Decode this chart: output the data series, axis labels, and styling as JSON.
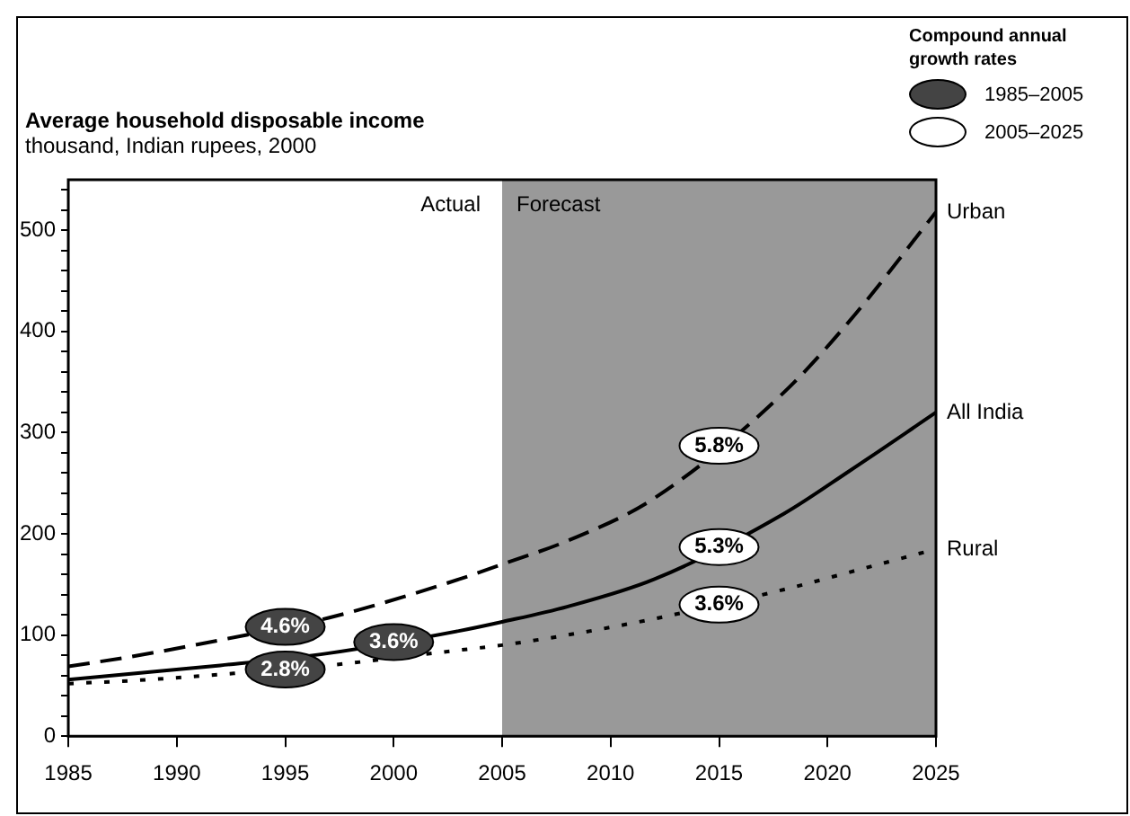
{
  "chart_data": {
    "type": "line",
    "title": "Average household disposable income",
    "subtitle": "thousand, Indian rupees, 2000",
    "legend_title": "Compound annual growth rates",
    "x": [
      1985,
      1988,
      1992,
      1997,
      2003,
      2005,
      2008,
      2012,
      2018,
      2021,
      2025
    ],
    "series": [
      {
        "name": "Urban",
        "color": "#000000",
        "line_style": "dashed",
        "values": [
          69,
          79,
          95,
          117,
          155,
          170,
          193,
          235,
          340,
          410,
          518
        ]
      },
      {
        "name": "All India",
        "color": "#000000",
        "line_style": "solid",
        "values": [
          56,
          62,
          70,
          82,
          104,
          113,
          128,
          155,
          220,
          262,
          320
        ]
      },
      {
        "name": "Rural",
        "color": "#000000",
        "line_style": "dotted",
        "values": [
          52,
          55,
          61,
          70,
          85,
          90,
          100,
          116,
          145,
          162,
          185
        ]
      }
    ],
    "xlim": [
      1985,
      2025
    ],
    "xticks": [
      1985,
      1990,
      1995,
      2000,
      2005,
      2010,
      2015,
      2020,
      2025
    ],
    "ylim": [
      0,
      550
    ],
    "yticks": [
      0,
      {
        "value": 20,
        "label": null
      },
      {
        "value": 40,
        "label": null
      },
      {
        "value": 60,
        "label": null
      },
      {
        "value": 80,
        "label": null
      },
      100,
      {
        "value": 120,
        "label": null
      },
      {
        "value": 140,
        "label": null
      },
      {
        "value": 160,
        "label": null
      },
      {
        "value": 180,
        "label": null
      },
      200,
      {
        "value": 220,
        "label": null
      },
      {
        "value": 240,
        "label": null
      },
      {
        "value": 260,
        "label": null
      },
      {
        "value": 280,
        "label": null
      },
      300,
      {
        "value": 320,
        "label": null
      },
      {
        "value": 340,
        "label": null
      },
      {
        "value": 360,
        "label": null
      },
      {
        "value": 380,
        "label": null
      },
      400,
      {
        "value": 420,
        "label": null
      },
      {
        "value": 440,
        "label": null
      },
      {
        "value": 460,
        "label": null
      },
      {
        "value": 480,
        "label": null
      },
      500,
      {
        "value": 520,
        "label": null
      },
      {
        "value": 540,
        "label": null
      }
    ],
    "bands": [
      {
        "axis": "x",
        "from": 2005,
        "to": 2025,
        "label": "Forecast",
        "color": "#999999"
      }
    ],
    "annotations": [
      "1985–2005",
      "2005–2025",
      "Actual",
      {
        "text": "4.6%",
        "x": 1995,
        "y": 108
      },
      {
        "text": "3.6%",
        "x": 2000,
        "y": 93
      },
      {
        "text": "2.8%",
        "x": 1995,
        "y": 66
      },
      {
        "text": "5.8%",
        "x": 2015,
        "y": 287
      },
      {
        "text": "5.3%",
        "x": 2015,
        "y": 187
      },
      {
        "text": "3.6%",
        "x": 2015,
        "y": 130
      }
    ],
    "grid": false,
    "legend": "top right",
    "marker": "none"
  }
}
